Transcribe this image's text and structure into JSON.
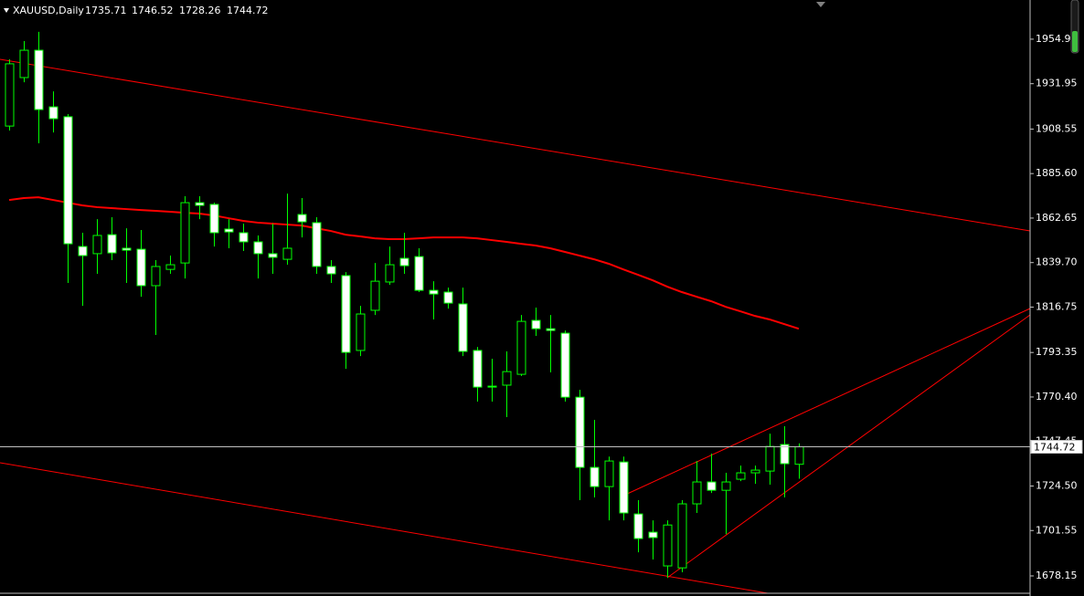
{
  "chart_data": {
    "type": "candlestick",
    "title": "XAUUSD,Daily",
    "open": [
      1910.1,
      1935.1,
      1949.2,
      1920.0,
      1914.9,
      1848.0,
      1844.3,
      1854.1,
      1847.1,
      1846.6,
      1827.8,
      1836.2,
      1839.5,
      1870.6,
      1869.7,
      1857.0,
      1855.1,
      1850.4,
      1844.3,
      1841.4,
      1864.5,
      1860.3,
      1837.7,
      1833.0,
      1794.4,
      1815.1,
      1829.7,
      1841.9,
      1842.8,
      1825.4,
      1824.5,
      1818.4,
      1794.4,
      1776.0,
      1776.5,
      1782.1,
      1809.9,
      1805.6,
      1803.3,
      1770.3,
      1734.1,
      1724.2,
      1736.9,
      1710.1,
      1700.7,
      1683.3,
      1682.3,
      1715.3,
      1726.6,
      1722.3,
      1728.0,
      1731.3,
      1732.2,
      1745.9,
      1735.71
    ],
    "high": [
      1944.5,
      1953.9,
      1958.7,
      1928.0,
      1916.3,
      1855.1,
      1862.1,
      1863.1,
      1857.4,
      1856.5,
      1841.0,
      1843.3,
      1873.9,
      1873.9,
      1870.6,
      1862.1,
      1859.8,
      1853.7,
      1859.8,
      1875.3,
      1873.0,
      1863.1,
      1841.0,
      1834.8,
      1817.4,
      1839.5,
      1848.0,
      1855.1,
      1847.1,
      1830.1,
      1826.8,
      1826.8,
      1796.2,
      1790.1,
      1793.9,
      1812.7,
      1816.5,
      1812.7,
      1804.7,
      1774.1,
      1758.6,
      1739.7,
      1739.7,
      1717.2,
      1706.8,
      1706.8,
      1717.2,
      1737.4,
      1741.2,
      1731.3,
      1735.0,
      1735.0,
      1751.5,
      1755.3,
      1746.52
    ],
    "low": [
      1907.8,
      1932.7,
      1901.2,
      1906.8,
      1829.2,
      1817.4,
      1833.9,
      1841.0,
      1829.2,
      1822.1,
      1802.4,
      1833.9,
      1831.5,
      1862.1,
      1848.0,
      1847.1,
      1845.7,
      1831.5,
      1833.9,
      1838.6,
      1852.7,
      1833.9,
      1829.2,
      1784.9,
      1791.5,
      1812.7,
      1828.2,
      1833.9,
      1824.5,
      1810.4,
      1816.0,
      1791.5,
      1768.0,
      1768.0,
      1760.0,
      1781.2,
      1801.9,
      1783.1,
      1768.0,
      1717.2,
      1718.6,
      1706.8,
      1706.8,
      1690.3,
      1686.6,
      1677.2,
      1680.0,
      1710.6,
      1720.9,
      1699.7,
      1727.0,
      1725.6,
      1725.2,
      1718.6,
      1728.26
    ],
    "close": [
      1942.2,
      1949.2,
      1918.6,
      1913.9,
      1849.4,
      1843.3,
      1853.7,
      1844.7,
      1846.1,
      1827.8,
      1837.7,
      1838.6,
      1870.6,
      1869.2,
      1855.1,
      1855.5,
      1850.4,
      1844.3,
      1842.4,
      1847.1,
      1860.7,
      1837.7,
      1833.9,
      1793.4,
      1813.2,
      1830.1,
      1838.6,
      1838.1,
      1825.4,
      1823.5,
      1818.8,
      1793.9,
      1775.5,
      1775.5,
      1783.5,
      1809.4,
      1805.6,
      1804.7,
      1770.3,
      1734.1,
      1724.2,
      1737.4,
      1710.6,
      1697.4,
      1697.9,
      1704.4,
      1715.3,
      1726.6,
      1722.3,
      1726.6,
      1731.3,
      1732.7,
      1744.9,
      1736.0,
      1744.72
    ],
    "moving_average": {
      "color": "#ff0000",
      "values": [
        1872.0,
        1873.0,
        1873.4,
        1872.0,
        1870.6,
        1869.2,
        1868.3,
        1867.8,
        1867.3,
        1866.8,
        1866.4,
        1865.9,
        1865.4,
        1865.0,
        1864.0,
        1862.6,
        1861.2,
        1860.3,
        1859.8,
        1859.3,
        1858.8,
        1857.4,
        1856.0,
        1854.1,
        1853.2,
        1852.2,
        1851.8,
        1851.8,
        1852.2,
        1852.7,
        1852.7,
        1852.7,
        1852.2,
        1851.3,
        1850.4,
        1849.4,
        1848.5,
        1847.1,
        1845.2,
        1843.3,
        1841.4,
        1839.1,
        1836.2,
        1833.4,
        1830.6,
        1827.3,
        1824.5,
        1822.1,
        1819.8,
        1816.9,
        1814.6,
        1812.2,
        1810.4,
        1808.0,
        1805.6
      ]
    },
    "colors": {
      "wick": "#00ff00",
      "bull_body": "#000000",
      "bear_body": "#ffffff",
      "price_line": "#c0c0c0"
    },
    "ylim": [
      1669.2,
      1975.1
    ],
    "yticks": [
      1954.9,
      1931.95,
      1908.55,
      {
        "value": 1885.6,
        "label": "1885.60"
      },
      1862.65,
      {
        "value": 1839.7,
        "label": "1839.70"
      },
      1816.75,
      1793.35,
      {
        "value": 1770.4,
        "label": "1770.40"
      },
      1747.45,
      {
        "value": 1724.5,
        "label": "1724.50"
      },
      1701.55,
      1678.15
    ],
    "grid": false
  }
}
